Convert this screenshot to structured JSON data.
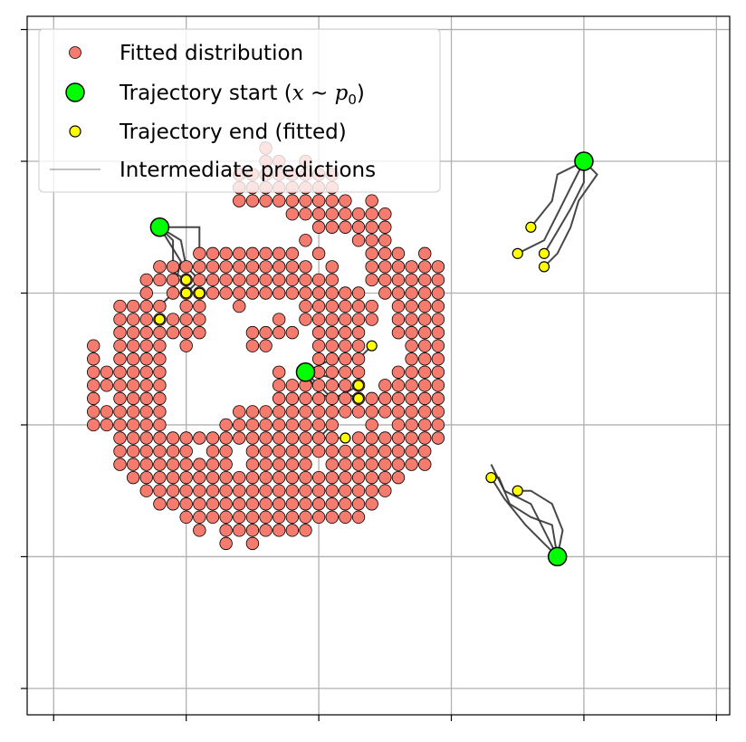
{
  "chart_data": {
    "type": "scatter",
    "title": "",
    "xlabel": "",
    "ylabel": "",
    "xlim": [
      -1.1,
      1.55
    ],
    "ylim": [
      -1.1,
      1.55
    ],
    "grid": true,
    "legend_placement": "upper-left",
    "xticks": [
      -1.0,
      -0.5,
      0.0,
      0.5,
      1.0,
      1.5
    ],
    "yticks": [
      -1.0,
      -0.5,
      0.0,
      0.5,
      1.0,
      1.5
    ],
    "legend": [
      {
        "label": "Fitted distribution",
        "marker": "point"
      },
      {
        "label": "Trajectory start (x ~ p0)",
        "marker": "start"
      },
      {
        "label": "Trajectory end (fitted)",
        "marker": "end"
      },
      {
        "label": "Intermediate predictions",
        "marker": "line"
      }
    ],
    "colors": {
      "fitted": "#f57b6e",
      "start": "#00ff00",
      "end": "#ffff00",
      "path": "#333333",
      "grid": "#b0b0b0"
    },
    "fitted_rows": [
      {
        "y": 1.05,
        "xs": [
          -0.2
        ]
      },
      {
        "y": 1.0,
        "xs": [
          -0.2,
          -0.15,
          -0.05
        ]
      },
      {
        "y": 0.95,
        "xs": [
          -0.3,
          -0.25,
          -0.2,
          -0.15,
          -0.1,
          -0.05,
          0.0,
          0.05
        ]
      },
      {
        "y": 0.9,
        "xs": [
          -0.3,
          -0.25,
          -0.2,
          -0.15,
          -0.1,
          -0.05,
          0.0,
          0.05
        ]
      },
      {
        "y": 0.85,
        "xs": [
          -0.3,
          -0.25,
          -0.2,
          -0.15,
          -0.1,
          -0.05,
          0.0,
          0.05,
          0.1,
          0.2
        ]
      },
      {
        "y": 0.8,
        "xs": [
          -0.1,
          -0.05,
          0.0,
          0.05,
          0.1,
          0.15,
          0.2,
          0.25
        ]
      },
      {
        "y": 0.75,
        "xs": [
          0.0,
          0.05,
          0.1,
          0.15,
          0.2,
          0.25
        ]
      },
      {
        "y": 0.7,
        "xs": [
          -0.05,
          0.15,
          0.2,
          0.25
        ]
      },
      {
        "y": 0.65,
        "xs": [
          -0.45,
          -0.4,
          -0.35,
          -0.3,
          -0.25,
          -0.2,
          -0.15,
          -0.1,
          0.0,
          0.2,
          0.25,
          0.3,
          0.4
        ]
      },
      {
        "y": 0.6,
        "xs": [
          -0.6,
          -0.55,
          -0.5,
          -0.45,
          -0.4,
          -0.35,
          -0.3,
          -0.25,
          -0.2,
          -0.15,
          -0.1,
          -0.05,
          0.05,
          0.2,
          0.25,
          0.3,
          0.35,
          0.4,
          0.45
        ]
      },
      {
        "y": 0.55,
        "xs": [
          -0.65,
          -0.6,
          -0.55,
          -0.5,
          -0.45,
          -0.4,
          -0.35,
          -0.3,
          -0.25,
          -0.2,
          -0.15,
          -0.1,
          -0.05,
          0.0,
          0.05,
          0.2,
          0.25,
          0.3,
          0.35,
          0.4,
          0.45
        ]
      },
      {
        "y": 0.5,
        "xs": [
          -0.65,
          -0.55,
          -0.5,
          -0.45,
          -0.4,
          -0.35,
          -0.3,
          -0.25,
          -0.2,
          -0.15,
          -0.1,
          -0.05,
          0.0,
          0.05,
          0.1,
          0.15,
          0.25,
          0.3,
          0.35,
          0.4,
          0.45
        ]
      },
      {
        "y": 0.45,
        "xs": [
          -0.75,
          -0.7,
          -0.65,
          -0.6,
          -0.5,
          -0.45,
          -0.3,
          -0.05,
          0.0,
          0.05,
          0.1,
          0.15,
          0.2,
          0.3,
          0.35,
          0.4,
          0.45
        ]
      },
      {
        "y": 0.4,
        "xs": [
          -0.75,
          -0.7,
          -0.65,
          -0.6,
          -0.55,
          -0.5,
          -0.45,
          -0.15,
          -0.05,
          0.0,
          0.05,
          0.1,
          0.15,
          0.2,
          0.3,
          0.35,
          0.4,
          0.45
        ]
      },
      {
        "y": 0.35,
        "xs": [
          -0.75,
          -0.7,
          -0.65,
          -0.6,
          -0.55,
          -0.5,
          -0.45,
          -0.25,
          -0.2,
          -0.15,
          -0.1,
          0.0,
          0.05,
          0.1,
          0.15,
          0.3,
          0.35,
          0.4,
          0.45
        ]
      },
      {
        "y": 0.3,
        "xs": [
          -0.85,
          -0.75,
          -0.7,
          -0.65,
          -0.6,
          -0.5,
          -0.25,
          -0.2,
          0.0,
          0.05,
          0.1,
          0.15,
          0.35,
          0.4,
          0.45
        ]
      },
      {
        "y": 0.25,
        "xs": [
          -0.85,
          -0.75,
          -0.7,
          -0.65,
          -0.6,
          0.0,
          0.05,
          0.1,
          0.15,
          0.35,
          0.4,
          0.45
        ]
      },
      {
        "y": 0.2,
        "xs": [
          -0.85,
          -0.8,
          -0.75,
          -0.7,
          -0.65,
          -0.6,
          -0.15,
          -0.05,
          0.0,
          0.05,
          0.1,
          0.15,
          0.3,
          0.35,
          0.4,
          0.45
        ]
      },
      {
        "y": 0.15,
        "xs": [
          -0.85,
          -0.8,
          -0.75,
          -0.7,
          -0.65,
          -0.6,
          -0.15,
          -0.1,
          -0.05,
          0.0,
          0.05,
          0.1,
          0.15,
          0.25,
          0.3,
          0.35,
          0.4,
          0.45
        ]
      },
      {
        "y": 0.1,
        "xs": [
          -0.85,
          -0.75,
          -0.7,
          -0.65,
          -0.6,
          -0.15,
          -0.1,
          -0.05,
          0.0,
          0.05,
          0.1,
          0.15,
          0.2,
          0.25,
          0.3,
          0.35,
          0.4,
          0.45
        ]
      },
      {
        "y": 0.05,
        "xs": [
          -0.85,
          -0.8,
          -0.75,
          -0.7,
          -0.65,
          -0.6,
          -0.3,
          -0.25,
          -0.2,
          -0.15,
          -0.1,
          -0.05,
          0.0,
          0.05,
          0.1,
          0.15,
          0.2,
          0.25,
          0.3,
          0.35,
          0.4,
          0.45
        ]
      },
      {
        "y": 0.0,
        "xs": [
          -0.85,
          -0.8,
          -0.75,
          -0.7,
          -0.65,
          -0.6,
          -0.35,
          -0.3,
          -0.25,
          -0.2,
          -0.15,
          -0.1,
          -0.05,
          0.0,
          0.05,
          0.2,
          0.3,
          0.35,
          0.4,
          0.45
        ]
      },
      {
        "y": -0.05,
        "xs": [
          -0.75,
          -0.7,
          -0.65,
          -0.6,
          -0.55,
          -0.5,
          -0.45,
          -0.4,
          -0.35,
          -0.3,
          -0.25,
          -0.2,
          -0.15,
          -0.1,
          -0.05,
          0.0,
          0.05,
          0.15,
          0.2,
          0.25,
          0.3,
          0.35,
          0.4,
          0.45
        ]
      },
      {
        "y": -0.1,
        "xs": [
          -0.75,
          -0.7,
          -0.65,
          -0.6,
          -0.55,
          -0.5,
          -0.4,
          -0.35,
          -0.25,
          -0.2,
          -0.15,
          -0.1,
          -0.05,
          0.0,
          0.05,
          0.1,
          0.15,
          0.2,
          0.25,
          0.3,
          0.35,
          0.4
        ]
      },
      {
        "y": -0.15,
        "xs": [
          -0.75,
          -0.7,
          -0.65,
          -0.6,
          -0.55,
          -0.5,
          -0.45,
          -0.4,
          -0.35,
          -0.25,
          -0.2,
          -0.15,
          -0.1,
          -0.05,
          0.05,
          0.1,
          0.15,
          0.2,
          0.25,
          0.3,
          0.35,
          0.4
        ]
      },
      {
        "y": -0.2,
        "xs": [
          -0.7,
          -0.65,
          -0.6,
          -0.55,
          -0.5,
          -0.45,
          -0.4,
          -0.35,
          -0.3,
          -0.25,
          -0.2,
          -0.15,
          -0.1,
          -0.05,
          0.0,
          0.05,
          0.1,
          0.15,
          0.2,
          0.25,
          0.3
        ]
      },
      {
        "y": -0.25,
        "xs": [
          -0.65,
          -0.6,
          -0.55,
          -0.5,
          -0.45,
          -0.4,
          -0.35,
          -0.3,
          -0.25,
          -0.2,
          -0.15,
          -0.1,
          -0.05,
          0.0,
          0.05,
          0.1,
          0.15,
          0.2,
          0.25
        ]
      },
      {
        "y": -0.3,
        "xs": [
          -0.6,
          -0.55,
          -0.5,
          -0.45,
          -0.4,
          -0.35,
          -0.3,
          -0.25,
          -0.2,
          -0.15,
          -0.1,
          -0.05,
          0.0,
          0.05,
          0.1,
          0.15,
          0.2
        ]
      },
      {
        "y": -0.35,
        "xs": [
          -0.5,
          -0.45,
          -0.4,
          -0.35,
          -0.3,
          -0.25,
          -0.2,
          -0.15,
          -0.1,
          -0.05,
          0.0,
          0.05,
          0.1,
          0.15
        ]
      },
      {
        "y": -0.4,
        "xs": [
          -0.45,
          -0.35,
          -0.3,
          -0.25,
          -0.2,
          -0.15,
          -0.1,
          -0.05
        ]
      },
      {
        "y": -0.45,
        "xs": [
          -0.35,
          -0.25
        ]
      }
    ],
    "trajectories": [
      {
        "start": [
          -0.6,
          0.75
        ],
        "paths": [
          [
            [
              -0.6,
              0.75
            ],
            [
              -0.45,
              0.75
            ],
            [
              -0.45,
              0.55
            ],
            [
              -0.4,
              0.55
            ],
            [
              -0.4,
              0.5
            ]
          ],
          [
            [
              -0.6,
              0.75
            ],
            [
              -0.52,
              0.7
            ],
            [
              -0.5,
              0.6
            ],
            [
              -0.45,
              0.55
            ],
            [
              -0.5,
              0.5
            ]
          ],
          [
            [
              -0.6,
              0.75
            ],
            [
              -0.55,
              0.7
            ],
            [
              -0.55,
              0.58
            ],
            [
              -0.5,
              0.55
            ],
            [
              -0.5,
              0.55
            ]
          ],
          [
            [
              -0.6,
              0.75
            ],
            [
              -0.52,
              0.62
            ],
            [
              -0.55,
              0.5
            ],
            [
              -0.6,
              0.45
            ]
          ]
        ],
        "ends": [
          [
            -0.5,
            0.55
          ],
          [
            -0.5,
            0.5
          ],
          [
            -0.45,
            0.5
          ],
          [
            -0.6,
            0.4
          ]
        ]
      },
      {
        "start": [
          1.0,
          1.0
        ],
        "paths": [
          [
            [
              1.0,
              1.0
            ],
            [
              0.9,
              0.95
            ],
            [
              0.88,
              0.85
            ],
            [
              0.8,
              0.75
            ]
          ],
          [
            [
              1.0,
              1.0
            ],
            [
              0.95,
              0.9
            ],
            [
              0.9,
              0.8
            ],
            [
              0.85,
              0.7
            ],
            [
              0.75,
              0.65
            ]
          ],
          [
            [
              1.0,
              1.0
            ],
            [
              1.05,
              0.95
            ],
            [
              0.98,
              0.85
            ],
            [
              0.95,
              0.75
            ],
            [
              0.9,
              0.65
            ],
            [
              0.85,
              0.6
            ]
          ],
          [
            [
              1.0,
              1.0
            ],
            [
              1.0,
              0.92
            ],
            [
              0.95,
              0.82
            ],
            [
              0.88,
              0.7
            ],
            [
              0.85,
              0.65
            ]
          ]
        ],
        "ends": [
          [
            0.8,
            0.75
          ],
          [
            0.75,
            0.65
          ],
          [
            0.85,
            0.65
          ],
          [
            0.85,
            0.6
          ]
        ]
      },
      {
        "start": [
          -0.05,
          0.2
        ],
        "paths": [
          [
            [
              -0.05,
              0.2
            ],
            [
              0.05,
              0.25
            ],
            [
              0.15,
              0.25
            ],
            [
              0.2,
              0.3
            ]
          ],
          [
            [
              -0.05,
              0.2
            ],
            [
              0.05,
              0.18
            ],
            [
              0.1,
              0.12
            ],
            [
              0.15,
              0.15
            ]
          ],
          [
            [
              -0.05,
              0.2
            ],
            [
              0.0,
              0.12
            ],
            [
              0.05,
              0.1
            ],
            [
              0.1,
              0.12
            ],
            [
              0.15,
              0.1
            ]
          ],
          [
            [
              -0.05,
              0.2
            ],
            [
              0.05,
              0.1
            ],
            [
              0.05,
              0.0
            ],
            [
              0.0,
              -0.05
            ],
            [
              0.1,
              -0.05
            ]
          ]
        ],
        "ends": [
          [
            0.2,
            0.3
          ],
          [
            0.15,
            0.15
          ],
          [
            0.15,
            0.1
          ],
          [
            0.1,
            -0.05
          ]
        ]
      },
      {
        "start": [
          0.9,
          -0.5
        ],
        "paths": [
          [
            [
              0.9,
              -0.5
            ],
            [
              0.85,
              -0.4
            ],
            [
              0.8,
              -0.3
            ],
            [
              0.7,
              -0.25
            ],
            [
              0.65,
              -0.15
            ]
          ],
          [
            [
              0.9,
              -0.5
            ],
            [
              0.88,
              -0.38
            ],
            [
              0.8,
              -0.35
            ],
            [
              0.72,
              -0.3
            ],
            [
              0.68,
              -0.2
            ],
            [
              0.65,
              -0.2
            ]
          ],
          [
            [
              0.9,
              -0.5
            ],
            [
              0.92,
              -0.4
            ],
            [
              0.88,
              -0.3
            ],
            [
              0.8,
              -0.25
            ],
            [
              0.75,
              -0.25
            ]
          ],
          [
            [
              0.9,
              -0.5
            ],
            [
              0.85,
              -0.45
            ],
            [
              0.78,
              -0.38
            ],
            [
              0.7,
              -0.28
            ],
            [
              0.65,
              -0.2
            ]
          ]
        ],
        "ends": [
          [
            0.65,
            -0.2
          ],
          [
            0.75,
            -0.25
          ]
        ]
      }
    ]
  },
  "legend": {
    "fitted_label": "Fitted distribution",
    "start_label_prefix": "Trajectory start (",
    "start_label_x": "x",
    "start_label_tilde": " ~ ",
    "start_label_p": "p",
    "start_label_sub": "0",
    "start_label_suffix": ")",
    "end_label": "Trajectory end (fitted)",
    "line_label": "Intermediate predictions"
  }
}
